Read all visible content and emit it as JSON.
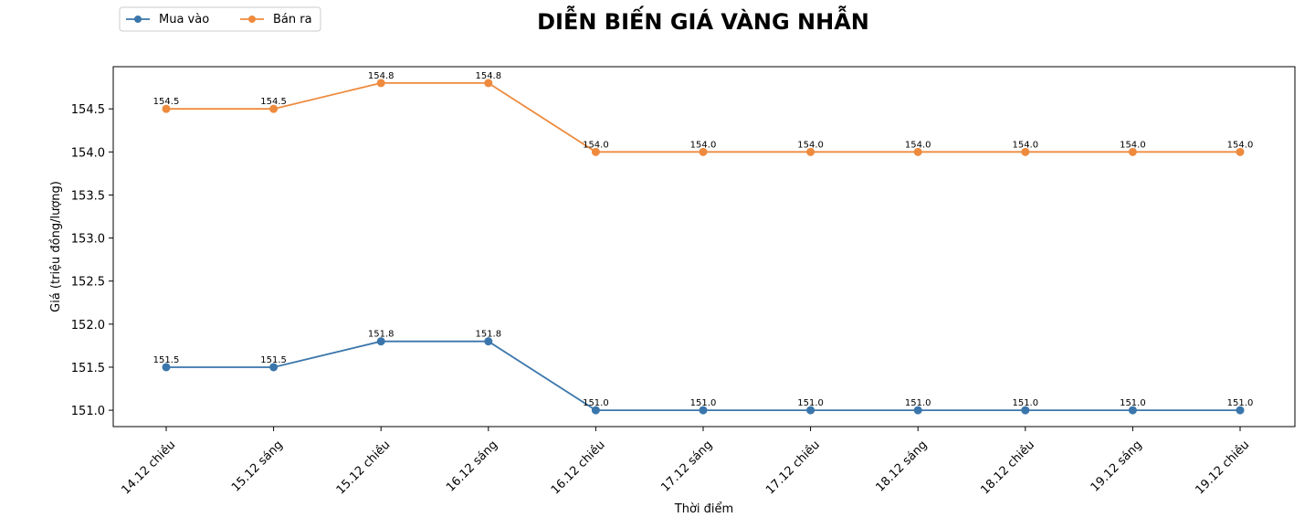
{
  "chart_data": {
    "type": "line",
    "title": "DIỄN BIẾN GIÁ VÀNG NHẪN",
    "xlabel": "Thời điểm",
    "ylabel": "Giá (triệu đồng/lượng)",
    "categories": [
      "14.12 chiều",
      "15.12 sáng",
      "15.12 chiều",
      "16.12 sáng",
      "16.12 chiều",
      "17.12 sáng",
      "17.12 chiều",
      "18.12 sáng",
      "18.12 chiều",
      "19.12 sáng",
      "19.12 chiều"
    ],
    "series": [
      {
        "name": "Mua vào",
        "color": "#3a76ab",
        "values": [
          151.5,
          151.5,
          151.8,
          151.8,
          151.0,
          151.0,
          151.0,
          151.0,
          151.0,
          151.0,
          151.0
        ],
        "labels": [
          "151.5",
          "151.5",
          "151.8",
          "151.8",
          "151.0",
          "151.0",
          "151.0",
          "151.0",
          "151.0",
          "151.0",
          "151.0"
        ]
      },
      {
        "name": "Bán ra",
        "color": "#ee8a3d",
        "values": [
          154.5,
          154.5,
          154.8,
          154.8,
          154.0,
          154.0,
          154.0,
          154.0,
          154.0,
          154.0,
          154.0
        ],
        "labels": [
          "154.5",
          "154.5",
          "154.8",
          "154.8",
          "154.0",
          "154.0",
          "154.0",
          "154.0",
          "154.0",
          "154.0",
          "154.0"
        ]
      }
    ],
    "yticks": [
      151.0,
      151.5,
      152.0,
      152.5,
      153.0,
      153.5,
      154.0,
      154.5
    ],
    "ytick_labels": [
      "151.0",
      "151.5",
      "152.0",
      "152.5",
      "153.0",
      "153.5",
      "154.0",
      "154.5"
    ],
    "ylim": [
      150.81,
      154.99
    ],
    "grid": false,
    "legend_position": "top-left",
    "x_tick_rotation": 45
  }
}
